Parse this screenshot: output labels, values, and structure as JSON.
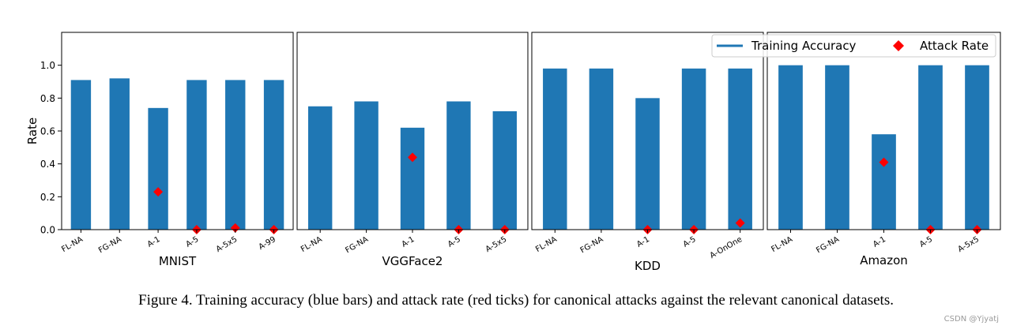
{
  "chart_data": {
    "type": "bar",
    "ylabel": "Rate",
    "ylim": [
      0,
      1.2
    ],
    "yticks": [
      "0.0",
      "0.2",
      "0.4",
      "0.6",
      "0.8",
      "1.0"
    ],
    "colors": {
      "bar": "#1f77b4",
      "marker": "#ff0000"
    },
    "legend": {
      "position": "top-right",
      "items": [
        {
          "label": "Training Accuracy",
          "kind": "line"
        },
        {
          "label": "Attack Rate",
          "kind": "diamond"
        }
      ]
    },
    "panels": [
      {
        "title": "MNIST",
        "categories": [
          "FL-NA",
          "FG-NA",
          "A-1",
          "A-5",
          "A-5x5",
          "A-99"
        ],
        "series": [
          {
            "name": "Training Accuracy",
            "values": [
              0.91,
              0.92,
              0.74,
              0.91,
              0.91,
              0.91
            ]
          },
          {
            "name": "Attack Rate",
            "values": [
              null,
              null,
              0.23,
              0.0,
              0.01,
              0.0
            ]
          }
        ]
      },
      {
        "title": "VGGFace2",
        "categories": [
          "FL-NA",
          "FG-NA",
          "A-1",
          "A-5",
          "A-5x5"
        ],
        "series": [
          {
            "name": "Training Accuracy",
            "values": [
              0.75,
              0.78,
              0.62,
              0.78,
              0.72
            ]
          },
          {
            "name": "Attack Rate",
            "values": [
              null,
              null,
              0.44,
              0.0,
              0.0
            ]
          }
        ]
      },
      {
        "title": "KDD",
        "categories": [
          "FL-NA",
          "FG-NA",
          "A-1",
          "A-5",
          "A-OnOne"
        ],
        "series": [
          {
            "name": "Training Accuracy",
            "values": [
              0.98,
              0.98,
              0.8,
              0.98,
              0.98
            ]
          },
          {
            "name": "Attack Rate",
            "values": [
              null,
              null,
              0.0,
              0.0,
              0.04
            ]
          }
        ]
      },
      {
        "title": "Amazon",
        "categories": [
          "FL-NA",
          "FG-NA",
          "A-1",
          "A-5",
          "A-5x5"
        ],
        "series": [
          {
            "name": "Training Accuracy",
            "values": [
              1.0,
              1.0,
              0.58,
              1.0,
              1.0
            ]
          },
          {
            "name": "Attack Rate",
            "values": [
              null,
              null,
              0.41,
              0.0,
              0.0
            ]
          }
        ]
      }
    ]
  },
  "caption": "Figure 4. Training accuracy (blue bars) and attack rate (red ticks) for canonical attacks against the relevant canonical datasets.",
  "watermark": "CSDN @Yjyatj"
}
